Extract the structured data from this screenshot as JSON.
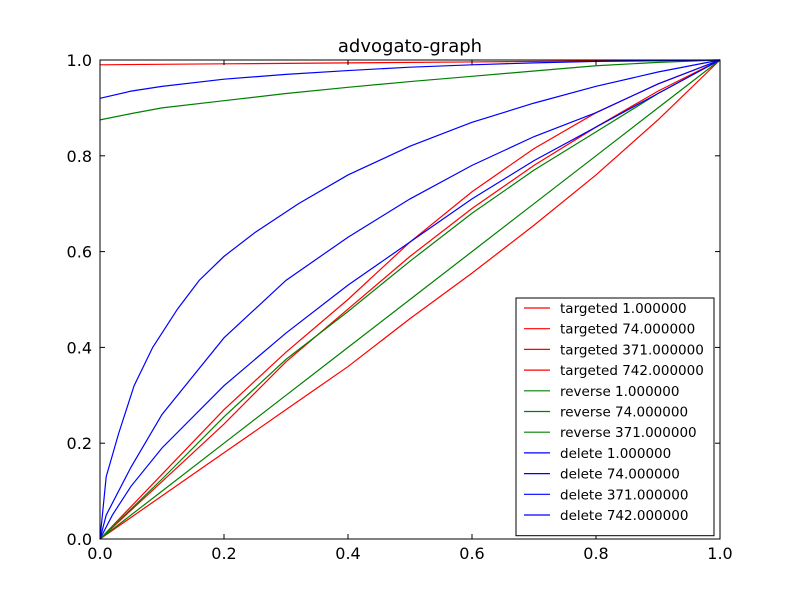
{
  "chart_data": {
    "type": "line",
    "title": "advogato-graph",
    "xlabel": "",
    "ylabel": "",
    "xlim": [
      0,
      1
    ],
    "ylim": [
      0,
      1
    ],
    "x_ticks": [
      "0.0",
      "0.2",
      "0.4",
      "0.6",
      "0.8",
      "1.0"
    ],
    "y_ticks": [
      "0.0",
      "0.2",
      "0.4",
      "0.6",
      "0.8",
      "1.0"
    ],
    "grid": false,
    "legend_position": "lower-right",
    "colors": {
      "targeted": "#ff0000",
      "reverse": "#008000",
      "delete": "#0000ff"
    },
    "series": [
      {
        "name": "targeted 1.000000",
        "color": "#ff0000",
        "points": [
          [
            0,
            0.99
          ],
          [
            0.2,
            0.992
          ],
          [
            0.4,
            0.994
          ],
          [
            0.6,
            0.996
          ],
          [
            0.8,
            0.998
          ],
          [
            1,
            1
          ]
        ]
      },
      {
        "name": "targeted 74.000000",
        "color": "#ff0000",
        "points": [
          [
            0,
            0
          ],
          [
            0.1,
            0.09
          ],
          [
            0.2,
            0.18
          ],
          [
            0.3,
            0.27
          ],
          [
            0.4,
            0.36
          ],
          [
            0.5,
            0.46
          ],
          [
            0.6,
            0.555
          ],
          [
            0.7,
            0.655
          ],
          [
            0.8,
            0.76
          ],
          [
            0.9,
            0.875
          ],
          [
            1,
            1
          ]
        ]
      },
      {
        "name": "targeted 371.000000",
        "color": "#ff0000",
        "points": [
          [
            0,
            0
          ],
          [
            0.1,
            0.12
          ],
          [
            0.2,
            0.24
          ],
          [
            0.3,
            0.37
          ],
          [
            0.4,
            0.48
          ],
          [
            0.5,
            0.59
          ],
          [
            0.6,
            0.69
          ],
          [
            0.7,
            0.78
          ],
          [
            0.8,
            0.86
          ],
          [
            0.9,
            0.935
          ],
          [
            1,
            1
          ]
        ]
      },
      {
        "name": "targeted 742.000000",
        "color": "#ff0000",
        "points": [
          [
            0,
            0
          ],
          [
            0.1,
            0.135
          ],
          [
            0.2,
            0.27
          ],
          [
            0.3,
            0.39
          ],
          [
            0.4,
            0.5
          ],
          [
            0.5,
            0.62
          ],
          [
            0.6,
            0.725
          ],
          [
            0.7,
            0.815
          ],
          [
            0.8,
            0.89
          ],
          [
            0.9,
            0.95
          ],
          [
            1,
            1
          ]
        ]
      },
      {
        "name": "reverse 1.000000",
        "color": "#008000",
        "points": [
          [
            0,
            0.875
          ],
          [
            0.05,
            0.888
          ],
          [
            0.1,
            0.9
          ],
          [
            0.2,
            0.915
          ],
          [
            0.3,
            0.93
          ],
          [
            0.4,
            0.943
          ],
          [
            0.5,
            0.955
          ],
          [
            0.6,
            0.966
          ],
          [
            0.7,
            0.977
          ],
          [
            0.8,
            0.988
          ],
          [
            0.9,
            0.995
          ],
          [
            1,
            1
          ]
        ]
      },
      {
        "name": "reverse 74.000000",
        "color": "#008000",
        "points": [
          [
            0,
            0
          ],
          [
            0.1,
            0.1
          ],
          [
            0.2,
            0.2
          ],
          [
            0.3,
            0.3
          ],
          [
            0.4,
            0.4
          ],
          [
            0.5,
            0.5
          ],
          [
            0.6,
            0.6
          ],
          [
            0.7,
            0.7
          ],
          [
            0.8,
            0.8
          ],
          [
            0.9,
            0.9
          ],
          [
            1,
            1
          ]
        ]
      },
      {
        "name": "reverse 371.000000",
        "color": "#008000",
        "points": [
          [
            0,
            0
          ],
          [
            0.1,
            0.125
          ],
          [
            0.2,
            0.255
          ],
          [
            0.3,
            0.375
          ],
          [
            0.4,
            0.475
          ],
          [
            0.5,
            0.58
          ],
          [
            0.6,
            0.68
          ],
          [
            0.7,
            0.77
          ],
          [
            0.8,
            0.85
          ],
          [
            0.9,
            0.93
          ],
          [
            1,
            1
          ]
        ]
      },
      {
        "name": "delete 1.000000",
        "color": "#0000ff",
        "points": [
          [
            0,
            0.92
          ],
          [
            0.05,
            0.935
          ],
          [
            0.1,
            0.945
          ],
          [
            0.2,
            0.96
          ],
          [
            0.3,
            0.97
          ],
          [
            0.4,
            0.978
          ],
          [
            0.5,
            0.985
          ],
          [
            0.6,
            0.99
          ],
          [
            0.7,
            0.994
          ],
          [
            0.8,
            0.997
          ],
          [
            1,
            1
          ]
        ]
      },
      {
        "name": "delete 74.000000",
        "color": "#0000ff",
        "points": [
          [
            0,
            0
          ],
          [
            0.01,
            0.13
          ],
          [
            0.03,
            0.22
          ],
          [
            0.055,
            0.32
          ],
          [
            0.085,
            0.4
          ],
          [
            0.125,
            0.48
          ],
          [
            0.16,
            0.54
          ],
          [
            0.2,
            0.59
          ],
          [
            0.25,
            0.64
          ],
          [
            0.32,
            0.7
          ],
          [
            0.4,
            0.76
          ],
          [
            0.5,
            0.82
          ],
          [
            0.6,
            0.87
          ],
          [
            0.7,
            0.91
          ],
          [
            0.8,
            0.945
          ],
          [
            0.9,
            0.975
          ],
          [
            1,
            1
          ]
        ]
      },
      {
        "name": "delete 371.000000",
        "color": "#0000ff",
        "points": [
          [
            0,
            0
          ],
          [
            0.01,
            0.05
          ],
          [
            0.05,
            0.15
          ],
          [
            0.1,
            0.26
          ],
          [
            0.15,
            0.34
          ],
          [
            0.2,
            0.42
          ],
          [
            0.3,
            0.54
          ],
          [
            0.4,
            0.63
          ],
          [
            0.5,
            0.71
          ],
          [
            0.6,
            0.78
          ],
          [
            0.7,
            0.84
          ],
          [
            0.8,
            0.89
          ],
          [
            0.9,
            0.95
          ],
          [
            1,
            1
          ]
        ]
      },
      {
        "name": "delete 742.000000",
        "color": "#0000ff",
        "points": [
          [
            0,
            0
          ],
          [
            0.02,
            0.05
          ],
          [
            0.05,
            0.11
          ],
          [
            0.1,
            0.19
          ],
          [
            0.2,
            0.32
          ],
          [
            0.3,
            0.43
          ],
          [
            0.4,
            0.53
          ],
          [
            0.5,
            0.62
          ],
          [
            0.6,
            0.71
          ],
          [
            0.7,
            0.79
          ],
          [
            0.8,
            0.86
          ],
          [
            0.9,
            0.93
          ],
          [
            1,
            1
          ]
        ]
      }
    ]
  }
}
